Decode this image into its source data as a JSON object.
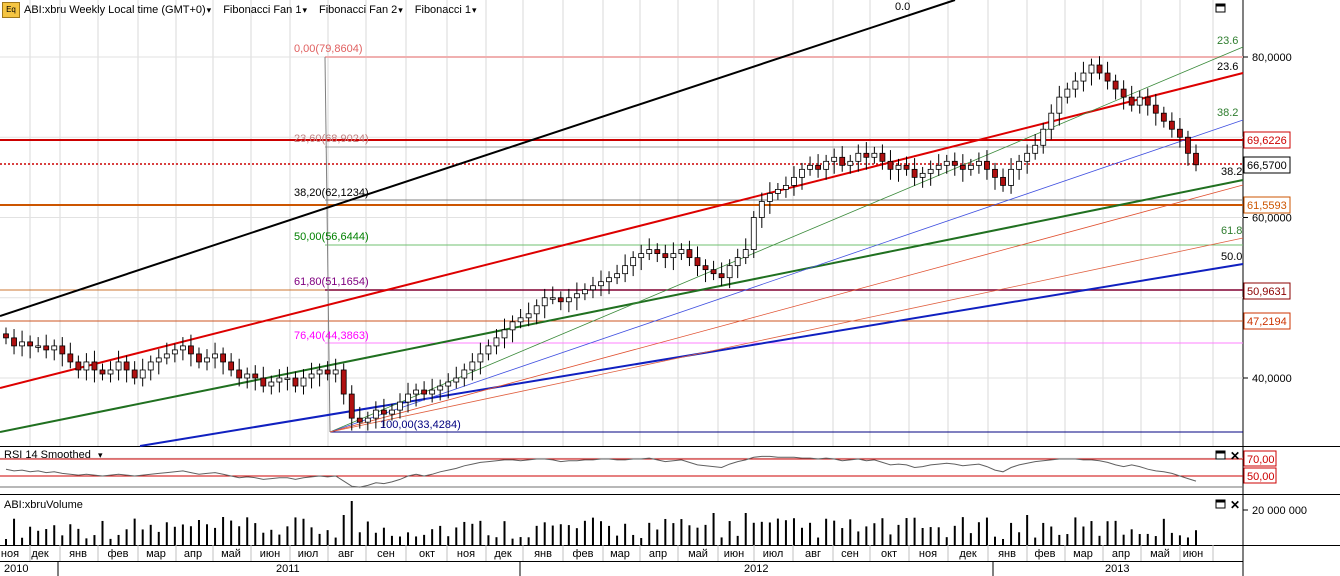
{
  "toolbar": {
    "symbol": "ABI:xbru Weekly Local time (GMT+0)",
    "items": [
      "Fibonacci Fan 1",
      "Fibonacci Fan 2",
      "Fibonacci 1"
    ]
  },
  "price_axis": {
    "ticks": [
      "80,0000",
      "60,0000",
      "40,0000"
    ],
    "tick_values": [
      80,
      60,
      40
    ],
    "badges": [
      {
        "label": "69,6226",
        "value": 69.6226,
        "color": "#cc0000",
        "bg": "#fff"
      },
      {
        "label": "66,5700",
        "value": 66.57,
        "color": "#000000",
        "bg": "#fff"
      },
      {
        "label": "61,5593",
        "value": 61.5593,
        "color": "#cc5500",
        "bg": "#fff"
      },
      {
        "label": "50,9631",
        "value": 50.9631,
        "color": "#8b0000",
        "bg": "#fff"
      },
      {
        "label": "47,2194",
        "value": 47.2194,
        "color": "#cc3300",
        "bg": "#fff"
      }
    ]
  },
  "fib_retracement": [
    {
      "label": "0,00(79,8604)",
      "color": "#e06060"
    },
    {
      "label": "23,60(68,9024)",
      "color": "#c08080"
    },
    {
      "label": "38,20(62,1234)",
      "color": "#000000"
    },
    {
      "label": "50,00(56,6444)",
      "color": "#008000"
    },
    {
      "label": "61,80(51,1654)",
      "color": "#800080"
    },
    {
      "label": "76,40(44,3863)",
      "color": "#ff00ff"
    },
    {
      "label": "100,00(33,4284)",
      "color": "#000080"
    }
  ],
  "fan_labels": [
    {
      "label": "0.0",
      "color": "#000"
    },
    {
      "label": "23.6",
      "color": "#2e7d2e"
    },
    {
      "label": "23.6",
      "color": "#000"
    },
    {
      "label": "38.2",
      "color": "#2e7d2e"
    },
    {
      "label": "38.2",
      "color": "#000"
    },
    {
      "label": "61.8",
      "color": "#2e7d2e"
    },
    {
      "label": "50.0",
      "color": "#000"
    }
  ],
  "rsi": {
    "title": "RSI 14 Smoothed",
    "levels": [
      "70,00",
      "50,00"
    ],
    "level_values": [
      70,
      50
    ]
  },
  "volume": {
    "title": "ABI:xbruVolume",
    "tick": "20 000 000"
  },
  "months": [
    "ноя",
    "дек",
    "янв",
    "фев",
    "мар",
    "апр",
    "май",
    "июн",
    "июл",
    "авг",
    "сен",
    "окт",
    "ноя",
    "дек",
    "янв",
    "фев",
    "мар",
    "апр",
    "май",
    "июн",
    "июл",
    "авг",
    "сен",
    "окт",
    "ноя",
    "дек",
    "янв",
    "фев",
    "мар",
    "апр",
    "май",
    "июн"
  ],
  "years": [
    "2010",
    "2011",
    "2012",
    "2013"
  ],
  "chart_data": {
    "type": "candlestick",
    "title": "ABI:xbru Weekly Local time (GMT+0)",
    "x_range": [
      "2010-11",
      "2013-06"
    ],
    "ylim": [
      30,
      85
    ],
    "close_series": [
      45,
      44,
      44.5,
      44,
      44,
      43.5,
      44,
      43,
      42,
      41,
      42,
      41,
      40.5,
      41,
      42,
      41,
      40,
      41,
      42,
      42.5,
      43,
      43.5,
      44,
      43,
      42,
      42.5,
      43,
      42,
      41,
      40,
      40.5,
      40,
      39,
      39.5,
      40,
      40,
      39,
      40,
      40.5,
      41,
      40.5,
      41,
      38,
      35,
      34.5,
      35,
      36,
      35.5,
      36,
      37,
      38,
      38.5,
      38,
      38.5,
      39,
      39.5,
      40,
      41,
      42,
      43,
      44,
      45,
      46,
      47,
      47.5,
      48,
      49,
      50,
      50,
      49.5,
      50,
      50.5,
      51,
      51.5,
      52,
      52.5,
      53,
      54,
      55,
      55.5,
      56,
      55.5,
      55,
      55.5,
      56,
      55,
      54,
      53.5,
      53,
      52.5,
      54,
      55,
      56,
      60,
      62,
      63,
      63.5,
      64,
      65,
      66,
      66.5,
      66,
      67,
      67.5,
      66.5,
      67,
      68,
      67.5,
      68,
      67,
      66,
      66.5,
      66,
      65,
      65.5,
      66,
      66.5,
      67,
      66.5,
      66,
      66.5,
      67,
      66,
      65,
      64,
      66,
      67,
      68,
      69,
      71,
      73,
      75,
      76,
      77,
      78,
      79,
      78,
      77,
      76,
      75,
      74,
      75,
      74,
      73,
      72,
      71,
      70,
      68,
      66.57
    ],
    "rsi_values": [
      58,
      56,
      57,
      55,
      56,
      54,
      55,
      53,
      52,
      51,
      52,
      51,
      50,
      51,
      52,
      51,
      50,
      51,
      52,
      53,
      54,
      55,
      56,
      54,
      52,
      53,
      54,
      52,
      50,
      48,
      49,
      48,
      46,
      47,
      48,
      48,
      46,
      48,
      49,
      50,
      49,
      50,
      44,
      38,
      37,
      39,
      42,
      41,
      43,
      46,
      50,
      52,
      50,
      52,
      55,
      57,
      59,
      62,
      64,
      66,
      67,
      68,
      69,
      69,
      68,
      69,
      70,
      70,
      69,
      67,
      68,
      68,
      69,
      69,
      70,
      70,
      69,
      69,
      70,
      70,
      71,
      69,
      67,
      68,
      69,
      66,
      63,
      62,
      61,
      60,
      64,
      67,
      69,
      72,
      73,
      73,
      72,
      72,
      72,
      71,
      71,
      70,
      71,
      70,
      68,
      69,
      70,
      68,
      69,
      66,
      63,
      64,
      63,
      60,
      61,
      63,
      64,
      65,
      64,
      62,
      63,
      64,
      61,
      57,
      55,
      60,
      63,
      65,
      67,
      68,
      69,
      70,
      70,
      70,
      69,
      69,
      68,
      66,
      63,
      61,
      63,
      61,
      58,
      56,
      55,
      53,
      50,
      47,
      44
    ],
    "volume_max": 20000000
  }
}
